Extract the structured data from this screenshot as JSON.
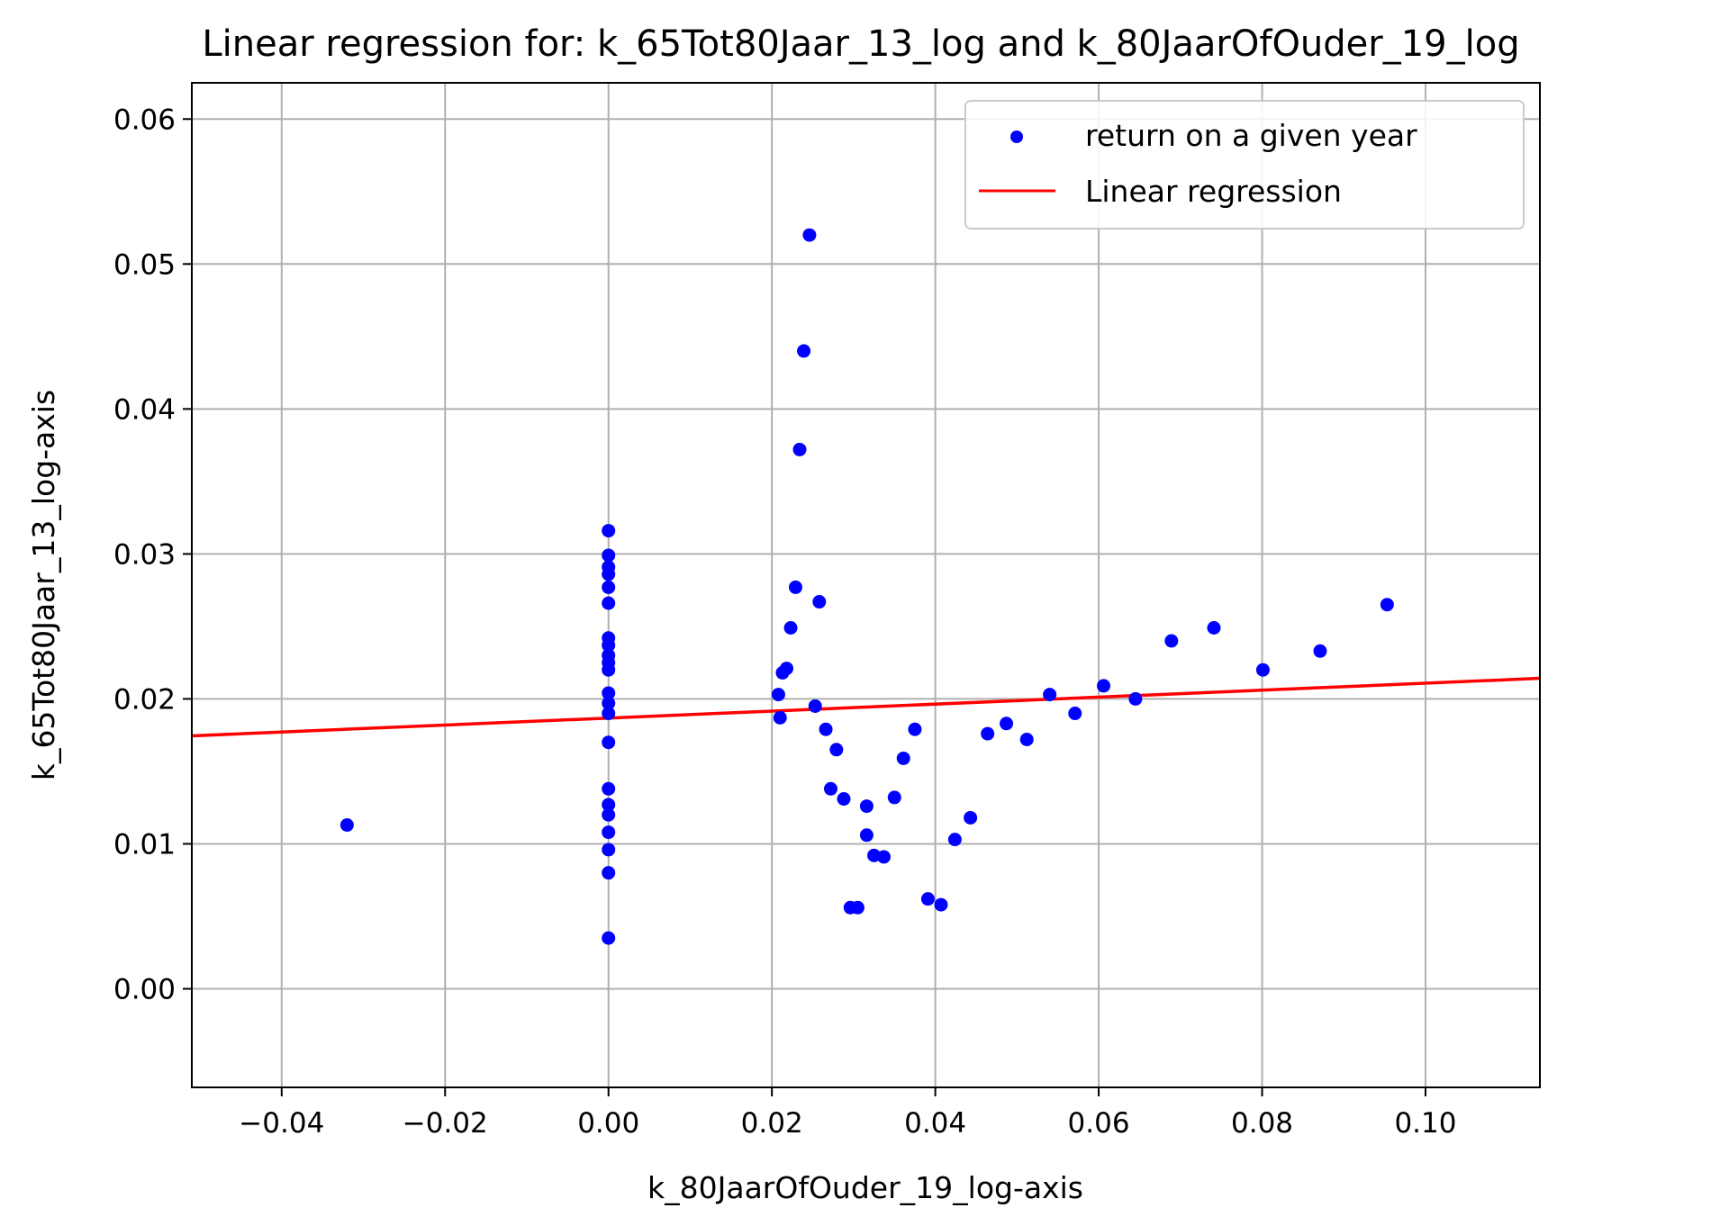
{
  "chart_data": {
    "type": "scatter",
    "title": "Linear regression for: k_65Tot80Jaar_13_log and k_80JaarOfOuder_19_log",
    "xlabel": "k_80JaarOfOuder_19_log-axis",
    "ylabel": "k_65Tot80Jaar_13_log-axis",
    "xlim": [
      -0.051,
      0.114
    ],
    "ylim": [
      -0.0068,
      0.0625
    ],
    "xticks": [
      -0.04,
      -0.02,
      0.0,
      0.02,
      0.04,
      0.06,
      0.08,
      0.1
    ],
    "xtick_labels": [
      "−0.04",
      "−0.02",
      "0.00",
      "0.02",
      "0.04",
      "0.06",
      "0.08",
      "0.10"
    ],
    "yticks": [
      0.0,
      0.01,
      0.02,
      0.03,
      0.04,
      0.05,
      0.06
    ],
    "ytick_labels": [
      "0.00",
      "0.01",
      "0.02",
      "0.03",
      "0.04",
      "0.05",
      "0.06"
    ],
    "grid": true,
    "legend_position": "top-right",
    "series": [
      {
        "name": "return on a given year",
        "kind": "scatter",
        "color": "#0000ff",
        "points": [
          [
            -0.032,
            0.0113
          ],
          [
            0.0,
            0.0316
          ],
          [
            0.0,
            0.0299
          ],
          [
            0.0,
            0.0291
          ],
          [
            0.0,
            0.0286
          ],
          [
            0.0,
            0.0277
          ],
          [
            0.0,
            0.0266
          ],
          [
            0.0,
            0.0242
          ],
          [
            0.0,
            0.0237
          ],
          [
            0.0,
            0.023
          ],
          [
            0.0,
            0.0225
          ],
          [
            0.0,
            0.022
          ],
          [
            0.0,
            0.0204
          ],
          [
            0.0,
            0.0197
          ],
          [
            0.0,
            0.019
          ],
          [
            0.0,
            0.017
          ],
          [
            0.0,
            0.0138
          ],
          [
            0.0,
            0.0127
          ],
          [
            0.0,
            0.012
          ],
          [
            0.0,
            0.0108
          ],
          [
            0.0,
            0.0096
          ],
          [
            0.0,
            0.008
          ],
          [
            0.0,
            0.0035
          ],
          [
            0.0208,
            0.0203
          ],
          [
            0.021,
            0.0187
          ],
          [
            0.0213,
            0.0218
          ],
          [
            0.0218,
            0.0221
          ],
          [
            0.0223,
            0.0249
          ],
          [
            0.0229,
            0.0277
          ],
          [
            0.0234,
            0.0372
          ],
          [
            0.0239,
            0.044
          ],
          [
            0.0246,
            0.052
          ],
          [
            0.0253,
            0.0195
          ],
          [
            0.0258,
            0.0267
          ],
          [
            0.0266,
            0.0179
          ],
          [
            0.0272,
            0.0138
          ],
          [
            0.0279,
            0.0165
          ],
          [
            0.0288,
            0.0131
          ],
          [
            0.0296,
            0.0056
          ],
          [
            0.0305,
            0.0056
          ],
          [
            0.0316,
            0.0106
          ],
          [
            0.0316,
            0.0126
          ],
          [
            0.0325,
            0.0092
          ],
          [
            0.0337,
            0.0091
          ],
          [
            0.035,
            0.0132
          ],
          [
            0.0361,
            0.0159
          ],
          [
            0.0375,
            0.0179
          ],
          [
            0.0391,
            0.0062
          ],
          [
            0.0407,
            0.0058
          ],
          [
            0.0424,
            0.0103
          ],
          [
            0.0443,
            0.0118
          ],
          [
            0.0464,
            0.0176
          ],
          [
            0.0487,
            0.0183
          ],
          [
            0.0512,
            0.0172
          ],
          [
            0.054,
            0.0203
          ],
          [
            0.0571,
            0.019
          ],
          [
            0.0606,
            0.0209
          ],
          [
            0.0645,
            0.02
          ],
          [
            0.0689,
            0.024
          ],
          [
            0.0741,
            0.0249
          ],
          [
            0.0801,
            0.022
          ],
          [
            0.0871,
            0.0233
          ],
          [
            0.0953,
            0.0265
          ]
        ]
      },
      {
        "name": "Linear regression",
        "kind": "line",
        "color": "#ff0000",
        "points": [
          [
            -0.051,
            0.01745
          ],
          [
            0.114,
            0.02142
          ]
        ]
      }
    ]
  }
}
